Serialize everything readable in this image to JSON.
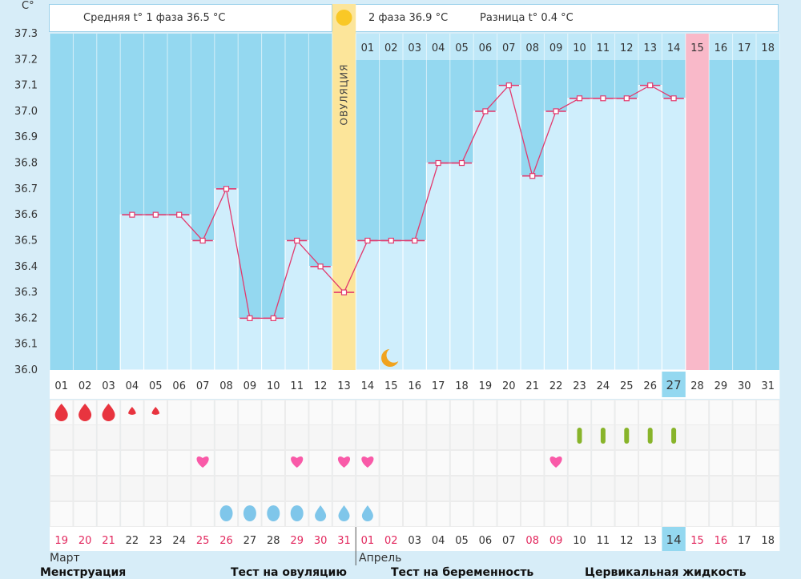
{
  "chart_data": {
    "type": "line",
    "unit_label": "C°",
    "ylim": [
      36.0,
      37.3
    ],
    "y_ticks": [
      "37.3",
      "37.2",
      "37.1",
      "37.0",
      "36.9",
      "36.8",
      "36.7",
      "36.6",
      "36.5",
      "36.4",
      "36.3",
      "36.2",
      "36.1",
      "36.0"
    ],
    "header": {
      "phase1": "Средняя t° 1 фаза 36.5 °С",
      "phase2": "2 фаза 36.9 °С",
      "diff": "Разница t° 0.4 °С"
    },
    "ovulation_label": "ОВУЛЯЦИЯ",
    "ovulation_day_index": 12,
    "cycle_days": [
      "01",
      "02",
      "03",
      "04",
      "05",
      "06",
      "07",
      "08",
      "09",
      "10",
      "11",
      "12",
      "13",
      "14",
      "15",
      "16",
      "17",
      "18",
      "19",
      "20",
      "21",
      "22",
      "23",
      "24",
      "25",
      "26",
      "27",
      "28",
      "29",
      "30",
      "31"
    ],
    "current_cycle_day_index": 26,
    "phase2_days": [
      "01",
      "02",
      "03",
      "04",
      "05",
      "06",
      "07",
      "08",
      "09",
      "10",
      "11",
      "12",
      "13",
      "14",
      "15",
      "16",
      "17",
      "18"
    ],
    "phase2_highlight_index": 14,
    "temperatures": [
      null,
      null,
      null,
      36.6,
      36.6,
      36.6,
      36.5,
      36.7,
      36.2,
      36.2,
      36.5,
      36.4,
      36.3,
      36.5,
      36.5,
      36.5,
      36.8,
      36.8,
      37.0,
      37.1,
      36.75,
      37.0,
      37.05,
      37.05,
      37.05,
      37.1,
      37.05,
      null,
      null,
      null,
      null
    ],
    "dates": [
      "19",
      "20",
      "21",
      "22",
      "23",
      "24",
      "25",
      "26",
      "27",
      "28",
      "29",
      "30",
      "31",
      "01",
      "02",
      "03",
      "04",
      "05",
      "06",
      "07",
      "08",
      "09",
      "10",
      "11",
      "12",
      "13",
      "14",
      "15",
      "16",
      "17",
      "18"
    ],
    "red_date_indices": [
      0,
      1,
      2,
      6,
      7,
      10,
      11,
      12,
      13,
      14,
      20,
      21,
      27,
      28
    ],
    "current_date_index": 26,
    "months": [
      "Март",
      "Апрель"
    ],
    "menstruation": [
      {
        "day": 0,
        "size": "large"
      },
      {
        "day": 1,
        "size": "large"
      },
      {
        "day": 2,
        "size": "large"
      },
      {
        "day": 3,
        "size": "small"
      },
      {
        "day": 4,
        "size": "small"
      }
    ],
    "ovulation_tests": [
      22,
      23,
      24,
      25,
      26
    ],
    "intercourse": [
      6,
      10,
      12,
      13,
      21
    ],
    "cervical_fluid": [
      {
        "day": 7,
        "kind": "round"
      },
      {
        "day": 8,
        "kind": "round"
      },
      {
        "day": 9,
        "kind": "round"
      },
      {
        "day": 10,
        "kind": "round"
      },
      {
        "day": 11,
        "kind": "drop"
      },
      {
        "day": 12,
        "kind": "drop"
      },
      {
        "day": 13,
        "kind": "drop"
      }
    ],
    "moon_day_index": 14,
    "legend": [
      "Менструация",
      "Тест на овуляцию",
      "Тест на беременность",
      "Цервикальная жидкость"
    ],
    "colors": {
      "plot_bg": "#94d8f0",
      "bar": "#cfeefc",
      "line": "#e23a6e",
      "ovulation": "#fce59a",
      "forecast": "#f9b9c9",
      "current": "#94d8f0",
      "red_text": "#e2285e",
      "drop_red": "#e8343f",
      "test_green": "#88b42a",
      "heart": "#f95aa8",
      "fluid_blue": "#7fc6ea",
      "moon": "#f0a31f"
    }
  }
}
